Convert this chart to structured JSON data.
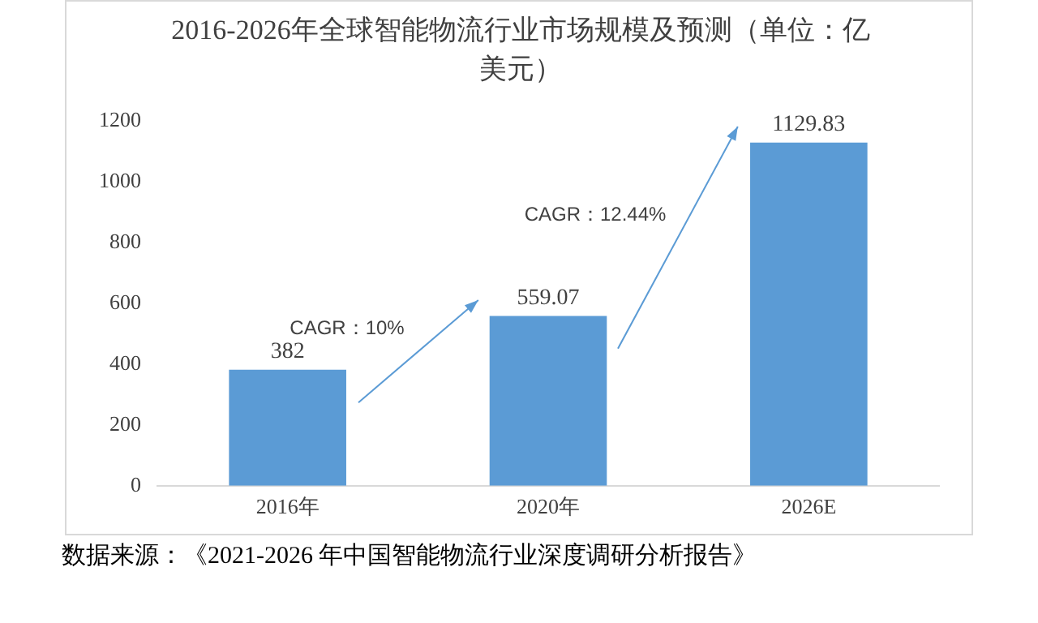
{
  "chart_data": {
    "type": "bar",
    "title": "2016-2026年全球智能物流行业市场规模及预测（单位：亿美元）",
    "categories": [
      "2016年",
      "2020年",
      "2026E"
    ],
    "values": [
      382,
      559.07,
      1129.83
    ],
    "color": "#5b9bd5",
    "ylim": [
      0,
      1200
    ],
    "yticks": [
      0,
      200,
      400,
      600,
      800,
      1000,
      1200
    ],
    "grid": false,
    "data_labels": true,
    "legend": false,
    "annotations": [
      "CAGR：10%",
      "CAGR：12.44%",
      "数据来源：《2021-2026 年中国智能物流行业深度调研分析报告》"
    ]
  }
}
